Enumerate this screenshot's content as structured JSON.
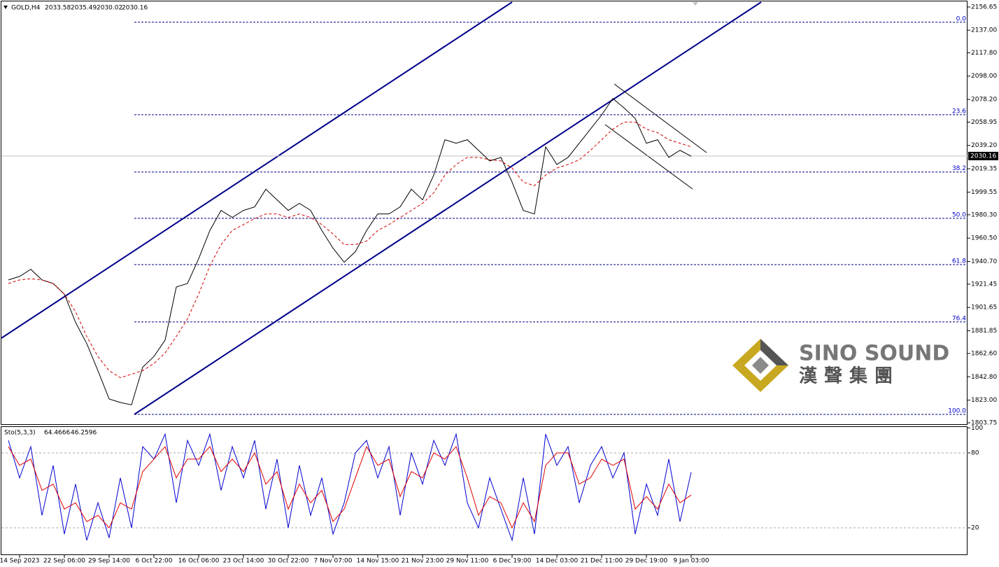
{
  "chart_data": [
    {
      "type": "line",
      "title": "GOLD,H4",
      "quote": {
        "open": 2033.58,
        "high": 2035.49,
        "low": 2030.02,
        "close": 2030.16
      },
      "categories": [
        null,
        "14 Sep 2023",
        null,
        null,
        null,
        "22 Sep 06:00",
        null,
        null,
        null,
        "29 Sep 14:00",
        null,
        null,
        null,
        "6 Oct 22:00",
        null,
        null,
        null,
        "16 Oct 06:00",
        null,
        null,
        null,
        "23 Oct 14:00",
        null,
        null,
        null,
        "30 Oct 22:00",
        null,
        null,
        null,
        "7 Nov 07:00",
        null,
        null,
        null,
        "14 Nov 15:00",
        null,
        null,
        null,
        "21 Nov 23:00",
        null,
        null,
        null,
        "29 Nov 11:00",
        null,
        null,
        null,
        "6 Dec 19:00",
        null,
        null,
        null,
        "14 Dec 03:00",
        null,
        null,
        null,
        "21 Dec 11:00",
        null,
        null,
        null,
        "29 Dec 19:00",
        null,
        null,
        null,
        "9 Jan 03:00"
      ],
      "series": [
        {
          "color": "#000000",
          "values": [
            1925,
            1928,
            1934,
            1925,
            1922,
            1913,
            1889,
            1871,
            1848,
            1824,
            1821,
            1819,
            1851,
            1860,
            1874,
            1919,
            1922,
            1943,
            1967,
            1984,
            1978,
            1984,
            1987,
            2002,
            1993,
            1984,
            1990,
            1984,
            1967,
            1952,
            1940,
            1949,
            1967,
            1981,
            1981,
            1987,
            2002,
            1993,
            2014,
            2044,
            2041,
            2044,
            2035,
            2026,
            2029,
            2008,
            1984,
            1981,
            2038,
            2023,
            2029,
            2041,
            2053,
            2065,
            2079,
            2071,
            2062,
            2041,
            2044,
            2029,
            2035,
            2030
          ]
        },
        {
          "color": "#d40000",
          "values": [
            1922,
            1925,
            1926,
            1925,
            1922,
            1913,
            1898,
            1877,
            1860,
            1848,
            1842,
            1845,
            1848,
            1854,
            1863,
            1877,
            1892,
            1913,
            1937,
            1955,
            1967,
            1972,
            1977,
            1981,
            1981,
            1978,
            1981,
            1978,
            1972,
            1964,
            1955,
            1955,
            1958,
            1967,
            1972,
            1978,
            1984,
            1990,
            1999,
            2014,
            2023,
            2029,
            2029,
            2027,
            2026,
            2020,
            2008,
            2005,
            2014,
            2020,
            2023,
            2027,
            2035,
            2044,
            2053,
            2059,
            2059,
            2053,
            2050,
            2044,
            2041,
            2038
          ]
        }
      ],
      "ylim": [
        1803.75,
        2156.65
      ],
      "yticks": [
        {
          "value": 2156.65,
          "label": "2156.65"
        },
        {
          "value": 2137.0,
          "label": "2137.00"
        },
        {
          "value": 2117.8,
          "label": "2117.80"
        },
        {
          "value": 2098.0,
          "label": "2098.00"
        },
        {
          "value": 2078.2,
          "label": "2078.20"
        },
        {
          "value": 2058.95,
          "label": "2058.95"
        },
        {
          "value": 2039.2,
          "label": "2039.20"
        },
        {
          "value": 2019.35,
          "label": "2019.35"
        },
        {
          "value": 1999.55,
          "label": "1999.55"
        },
        {
          "value": 1980.3,
          "label": "1980.30"
        },
        {
          "value": 1960.5,
          "label": "1960.50"
        },
        {
          "value": 1940.7,
          "label": "1940.70"
        },
        {
          "value": 1921.45,
          "label": "1921.45"
        },
        {
          "value": 1901.65,
          "label": "1901.65"
        },
        {
          "value": 1881.85,
          "label": "1881.85"
        },
        {
          "value": 1862.6,
          "label": "1862.60"
        },
        {
          "value": 1842.8,
          "label": "1842.80"
        },
        {
          "value": 1823.0,
          "label": "1823.00"
        },
        {
          "value": 1803.75,
          "label": "1803.75"
        }
      ],
      "fib_levels": [
        {
          "value": 2143.7,
          "label": "0.0"
        },
        {
          "value": 2065.2,
          "label": "23.6"
        },
        {
          "value": 2016.6,
          "label": "38.2"
        },
        {
          "value": 1977.3,
          "label": "50.0"
        },
        {
          "value": 1938.0,
          "label": "61.8"
        },
        {
          "value": 1889.4,
          "label": "76.4"
        },
        {
          "value": 1810.9,
          "label": "100.0"
        }
      ],
      "watermark": {
        "name": "SINO SOUND",
        "chinese": "漢聲集團"
      }
    },
    {
      "type": "line",
      "title": "Sto(5,3,3)",
      "series": [
        {
          "color": "#0000d0",
          "values": [
            90,
            60,
            85,
            30,
            70,
            15,
            55,
            10,
            40,
            12,
            60,
            20,
            85,
            75,
            95,
            40,
            90,
            70,
            95,
            50,
            85,
            60,
            90,
            35,
            75,
            20,
            70,
            30,
            60,
            15,
            40,
            80,
            90,
            60,
            85,
            30,
            80,
            55,
            90,
            70,
            95,
            40,
            20,
            60,
            35,
            10,
            60,
            15,
            95,
            70,
            85,
            40,
            70,
            85,
            60,
            80,
            15,
            55,
            30,
            75,
            25,
            64.4666
          ]
        },
        {
          "color": "#e00000",
          "values": [
            85,
            70,
            75,
            50,
            55,
            35,
            40,
            25,
            30,
            20,
            40,
            35,
            65,
            75,
            85,
            60,
            75,
            75,
            85,
            65,
            75,
            65,
            80,
            55,
            65,
            35,
            55,
            40,
            50,
            25,
            35,
            60,
            85,
            70,
            75,
            45,
            65,
            60,
            80,
            75,
            85,
            60,
            30,
            45,
            40,
            20,
            40,
            25,
            70,
            80,
            80,
            55,
            60,
            75,
            70,
            75,
            35,
            45,
            35,
            55,
            40,
            46.2596
          ]
        }
      ],
      "ylim": [
        0,
        100
      ],
      "yticks": [
        100,
        80,
        20
      ]
    }
  ]
}
